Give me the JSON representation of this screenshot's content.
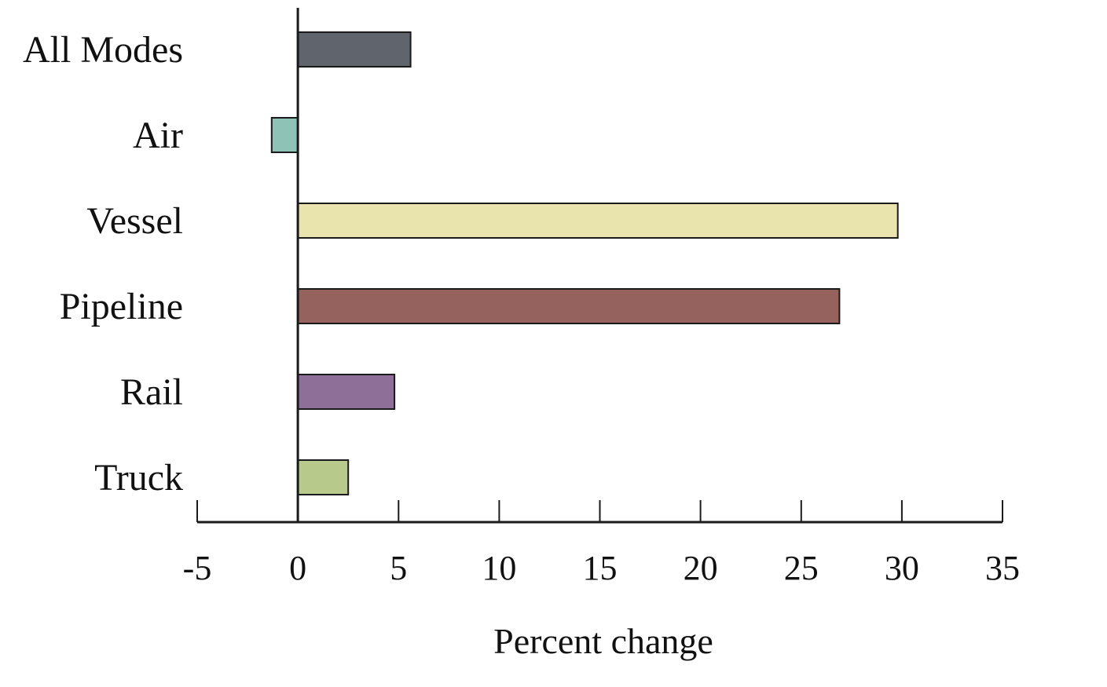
{
  "chart_data": {
    "type": "bar",
    "orientation": "horizontal",
    "categories": [
      "All Modes",
      "Air",
      "Vessel",
      "Pipeline",
      "Rail",
      "Truck"
    ],
    "values": [
      5.6,
      -1.3,
      29.8,
      26.9,
      4.8,
      2.5
    ],
    "colors": [
      "#5f646d",
      "#8fc2b7",
      "#e9e3ad",
      "#95625e",
      "#8d6f98",
      "#b8c98c"
    ],
    "xlabel": "Percent change",
    "ylabel": "",
    "title": "",
    "xlim": [
      -5,
      35
    ],
    "xticks": [
      -5,
      0,
      5,
      10,
      15,
      20,
      25,
      30,
      35
    ],
    "xtick_labels": [
      "-5",
      "0",
      "5",
      "10",
      "15",
      "20",
      "25",
      "30",
      "35"
    ],
    "grid": false,
    "legend": "none"
  }
}
